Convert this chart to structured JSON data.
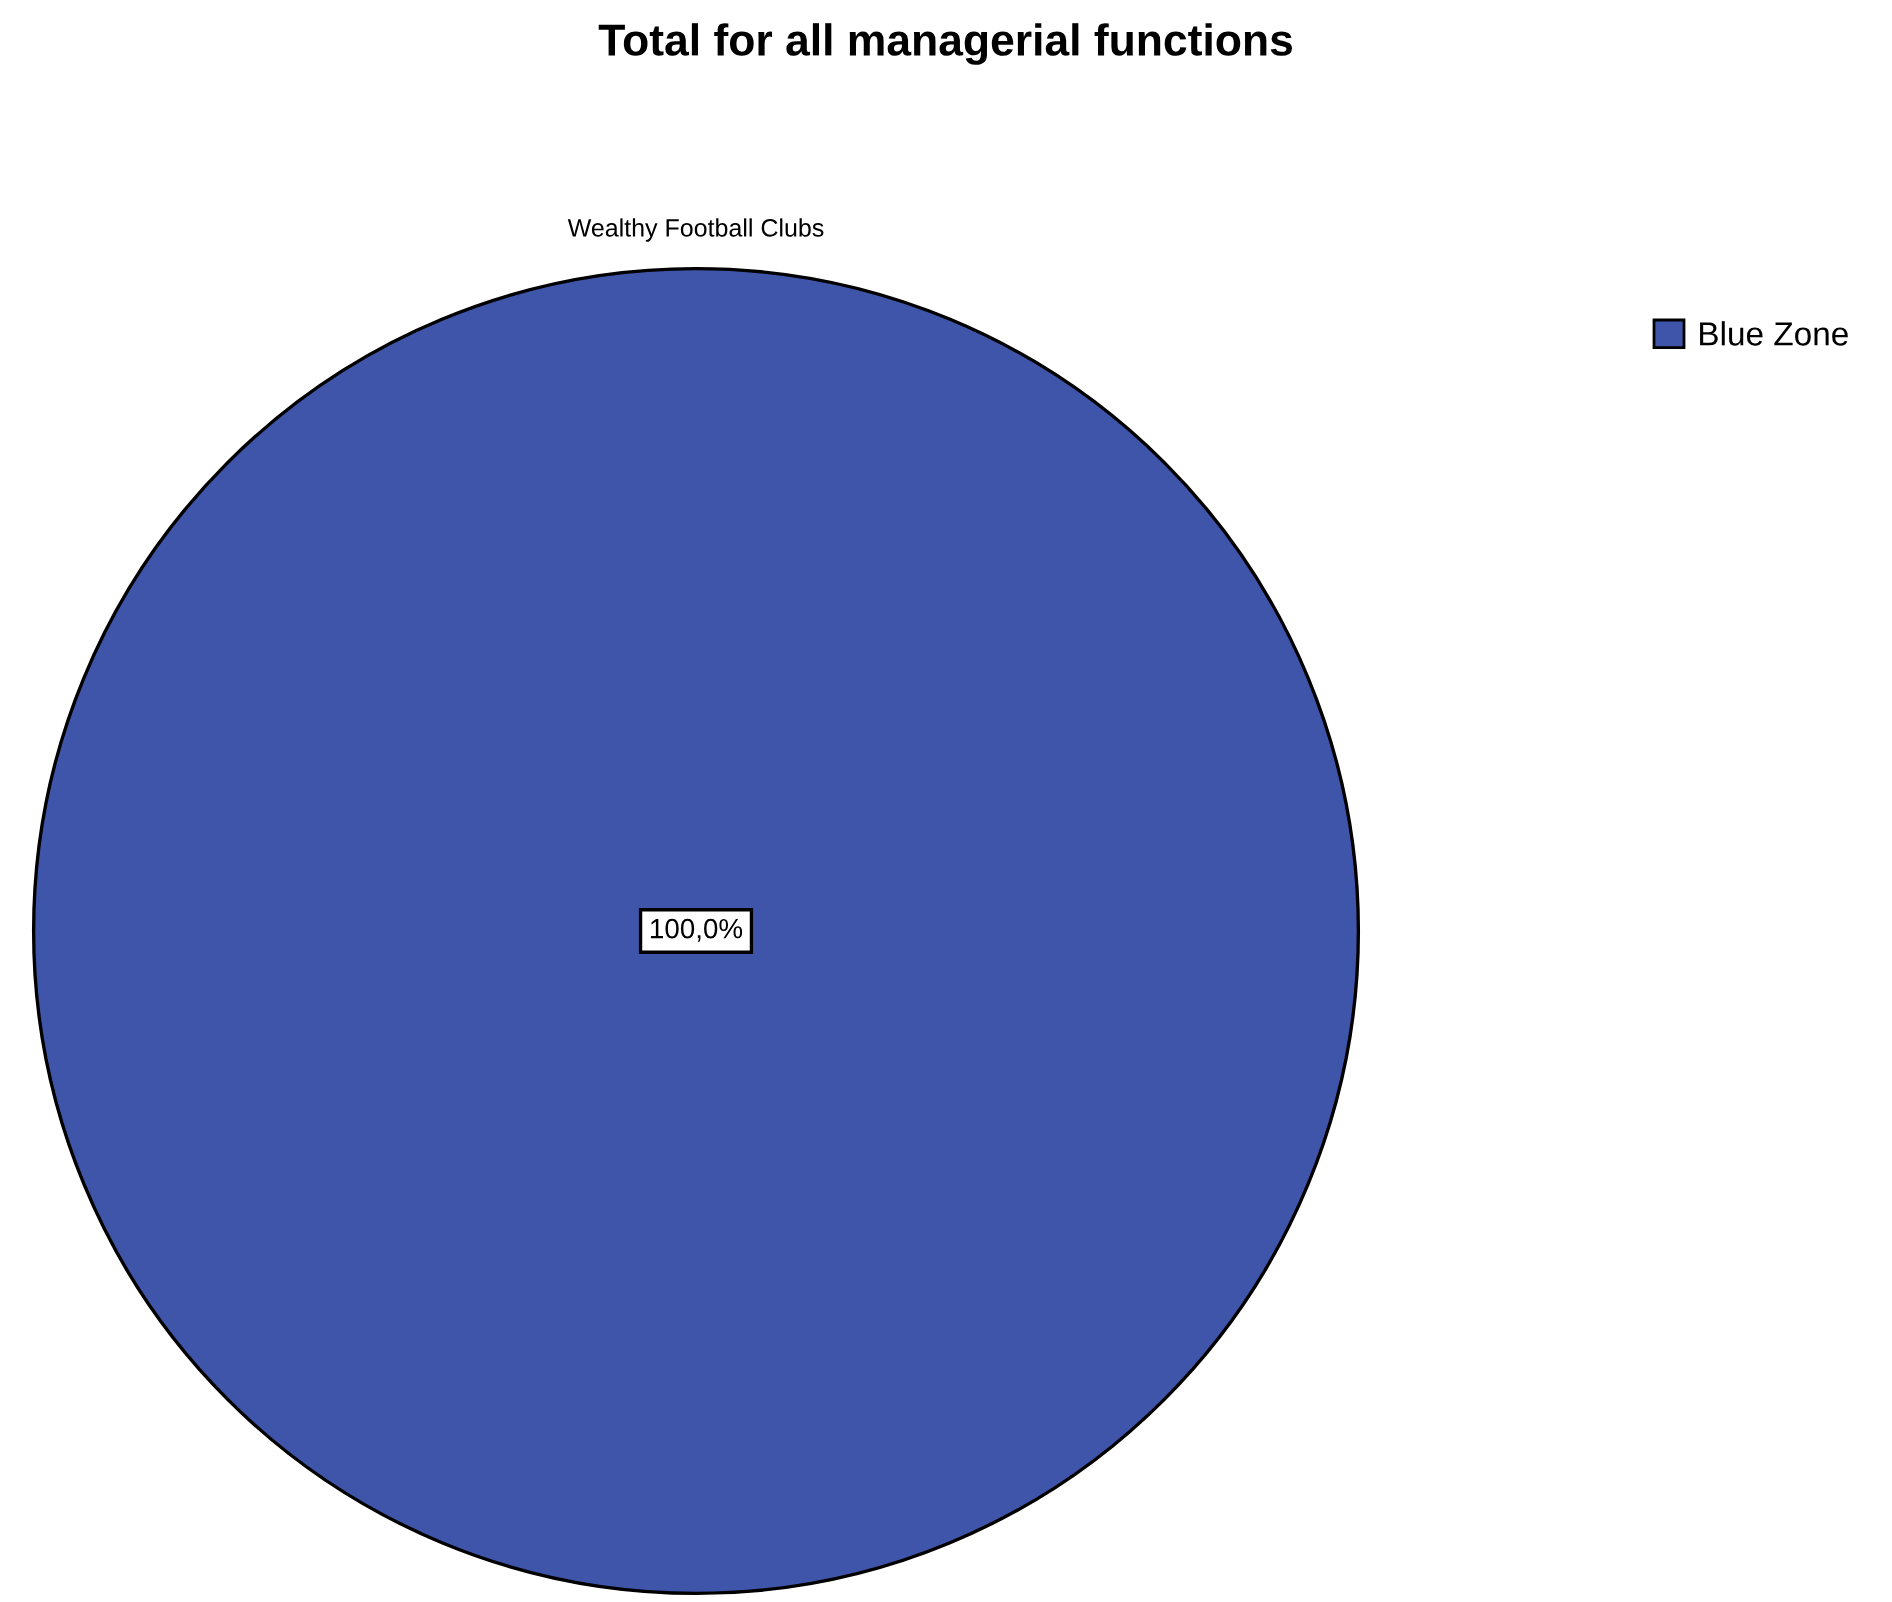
{
  "chart_data": {
    "type": "pie",
    "title": "Total for all managerial functions",
    "subtitle": "Wealthy Football Clubs",
    "categories": [
      "Blue Zone"
    ],
    "values": [
      100
    ],
    "colors": [
      "#3f55a9"
    ],
    "value_labels": [
      "100,0%"
    ],
    "legend": "top right"
  }
}
